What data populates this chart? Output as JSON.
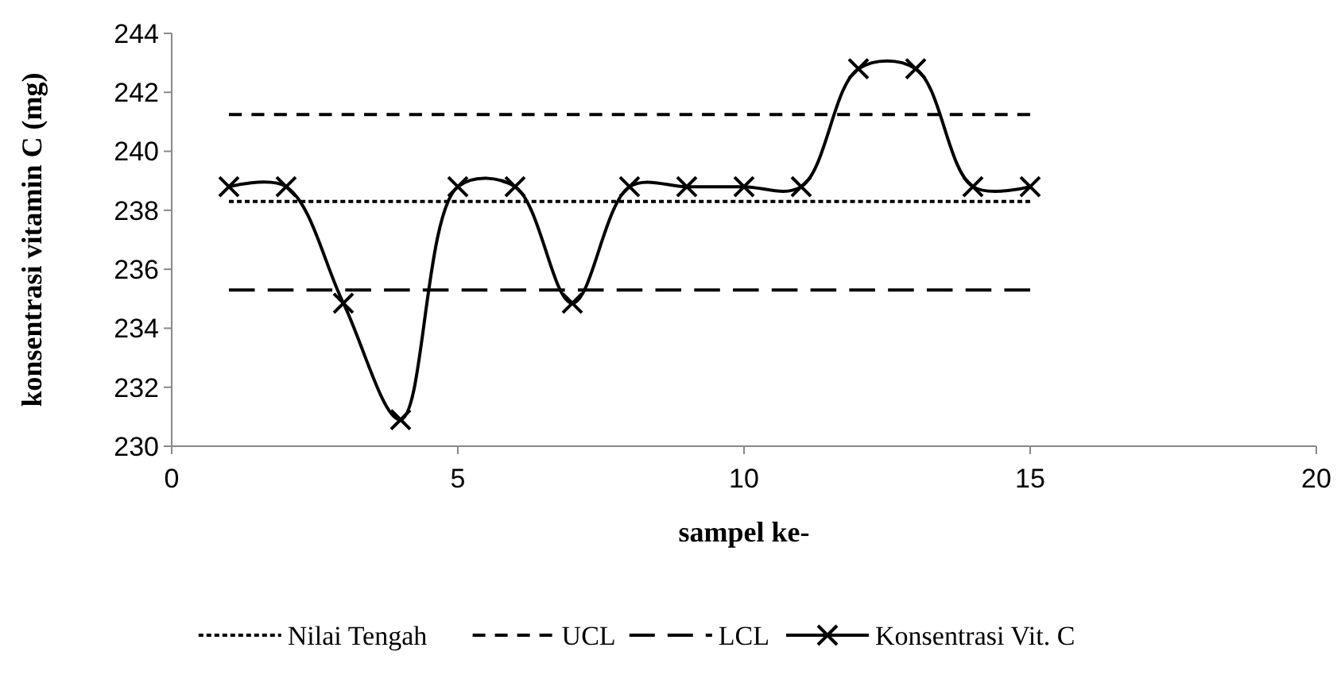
{
  "chart_data": {
    "type": "line",
    "xlabel": "sampel ke-",
    "ylabel": "konsentrasi vitamin C (mg)",
    "xlim": [
      0,
      20
    ],
    "xticks": [
      0,
      5,
      10,
      15,
      20
    ],
    "ylim": [
      230,
      244
    ],
    "yticks": [
      230,
      232,
      234,
      236,
      238,
      240,
      242,
      244
    ],
    "grid": false,
    "legend": "bottom",
    "series": [
      {
        "name": "Nilai Tengah",
        "color": "#000000",
        "x": [
          1,
          15
        ],
        "values": [
          238.3,
          238.3
        ],
        "line_style": "dotted",
        "marker": "none"
      },
      {
        "name": "UCL",
        "color": "#000000",
        "x": [
          1,
          15
        ],
        "values": [
          241.25,
          241.25
        ],
        "line_style": "dashed",
        "marker": "none"
      },
      {
        "name": "LCL",
        "color": "#000000",
        "x": [
          1,
          15
        ],
        "values": [
          235.3,
          235.3
        ],
        "line_style": "dashed",
        "marker": "none"
      },
      {
        "name": "Konsentrasi Vit. C",
        "color": "#000000",
        "x": [
          1,
          2,
          3,
          4,
          5,
          6,
          7,
          8,
          9,
          10,
          11,
          12,
          13,
          14,
          15
        ],
        "values": [
          238.8,
          238.8,
          234.85,
          230.9,
          238.8,
          238.8,
          234.85,
          238.8,
          238.8,
          238.8,
          238.8,
          242.8,
          242.8,
          238.8,
          238.8
        ],
        "line_style": "solid",
        "marker": "cross"
      }
    ]
  }
}
